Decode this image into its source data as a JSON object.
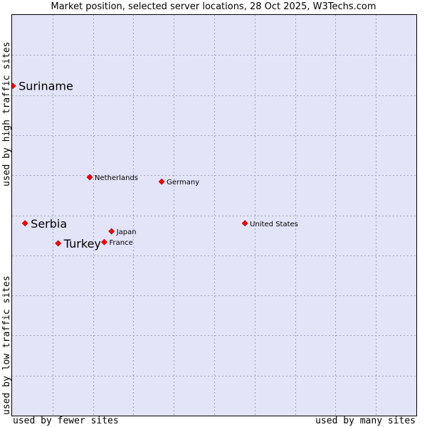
{
  "chart_data": {
    "type": "scatter",
    "title": "Market position, selected server locations, 28 Oct 2025, W3Techs.com",
    "xlabel_left": "used by fewer sites",
    "xlabel_right": "used by many sites",
    "ylabel_bottom": "used by low traffic sites",
    "ylabel_top": "used by high traffic sites",
    "xlim": [
      0,
      100
    ],
    "ylim": [
      0,
      100
    ],
    "grid": true,
    "marker_color": "#ff0000",
    "points": [
      {
        "label": "Suriname",
        "x": 0.2,
        "y": 82.3,
        "emphasis": true
      },
      {
        "label": "Netherlands",
        "x": 19.2,
        "y": 59.5,
        "emphasis": false
      },
      {
        "label": "Germany",
        "x": 37.0,
        "y": 58.4,
        "emphasis": false
      },
      {
        "label": "Serbia",
        "x": 3.2,
        "y": 48.0,
        "emphasis": true
      },
      {
        "label": "United States",
        "x": 57.6,
        "y": 48.0,
        "emphasis": false
      },
      {
        "label": "Japan",
        "x": 24.6,
        "y": 46.0,
        "emphasis": false
      },
      {
        "label": "Turkey",
        "x": 11.4,
        "y": 43.0,
        "emphasis": true
      },
      {
        "label": "France",
        "x": 22.8,
        "y": 43.3,
        "emphasis": false
      }
    ]
  }
}
